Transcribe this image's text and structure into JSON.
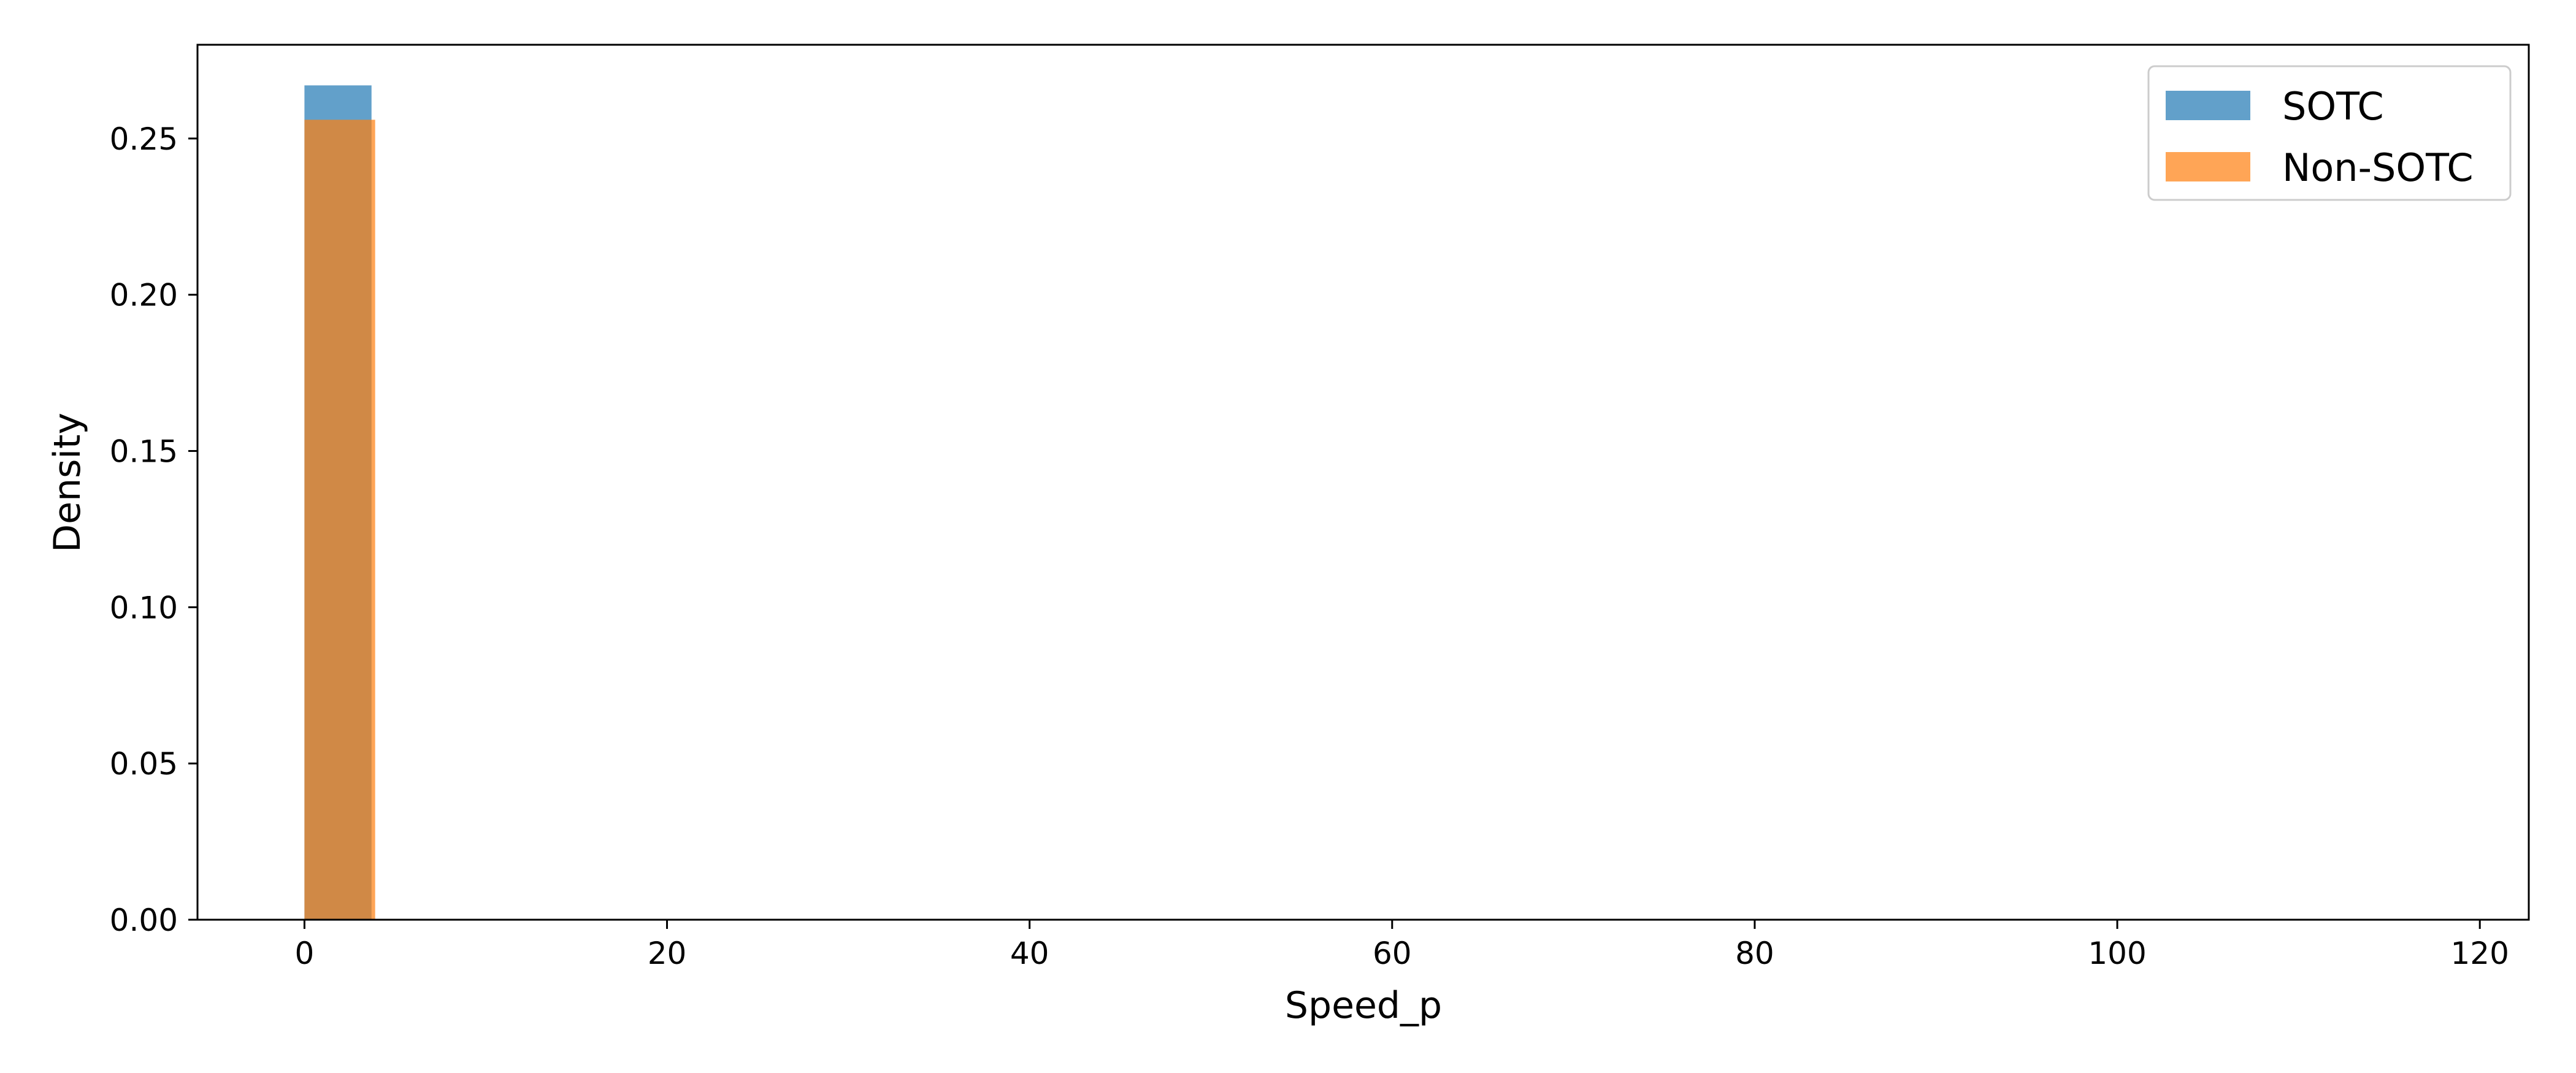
{
  "chart_data": {
    "type": "bar",
    "subtype": "histogram",
    "xlabel": "Speed_p",
    "ylabel": "Density",
    "xlim": [
      -5.9,
      122.7
    ],
    "ylim": [
      0,
      0.28
    ],
    "xticks": [
      0,
      20,
      40,
      60,
      80,
      100,
      120
    ],
    "yticks": [
      0.0,
      0.05,
      0.1,
      0.15,
      0.2,
      0.25
    ],
    "ytick_labels": [
      "0.00",
      "0.05",
      "0.10",
      "0.15",
      "0.20",
      "0.25"
    ],
    "grid": false,
    "legend_position": "top-right",
    "series": [
      {
        "name": "SOTC",
        "color": "#1f77b4",
        "alpha": 0.7,
        "bins": [
          {
            "x0": 0,
            "x1": 3.7,
            "density": 0.267
          }
        ]
      },
      {
        "name": "Non-SOTC",
        "color": "#ff7f0e",
        "alpha": 0.7,
        "bins": [
          {
            "x0": 0,
            "x1": 3.9,
            "density": 0.256
          }
        ]
      }
    ]
  }
}
